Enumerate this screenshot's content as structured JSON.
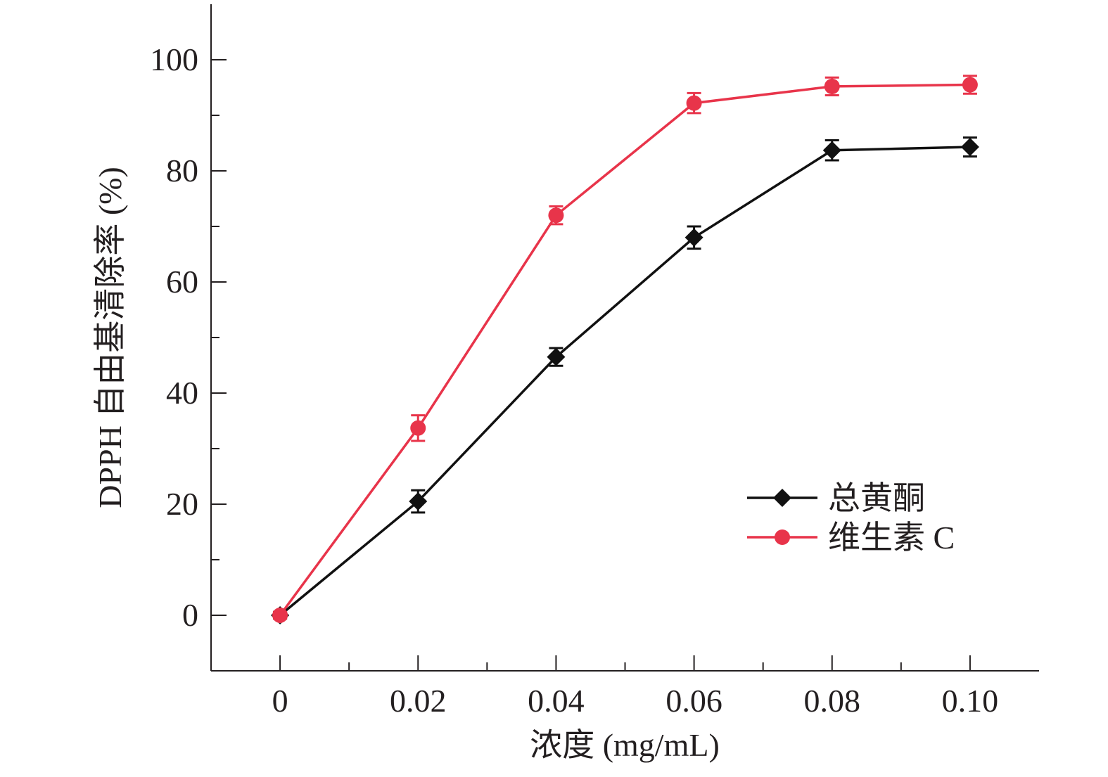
{
  "colors": {
    "axis": "#231f20",
    "series_black": "#111111",
    "series_red": "#e8344a"
  },
  "chart_data": {
    "type": "line",
    "xlabel": "浓度 (mg/mL)",
    "ylabel": "DPPH 自由基清除率 (%)",
    "xlim": [
      -0.01,
      0.11
    ],
    "ylim": [
      -10,
      110
    ],
    "x_ticks": [
      0,
      0.02,
      0.04,
      0.06,
      0.08,
      0.1
    ],
    "x_tick_labels": [
      "0",
      "0.02",
      "0.04",
      "0.06",
      "0.08",
      "0.10"
    ],
    "y_ticks": [
      0,
      20,
      40,
      60,
      80,
      100
    ],
    "y_tick_labels": [
      "0",
      "20",
      "40",
      "60",
      "80",
      "100"
    ],
    "x": [
      0,
      0.02,
      0.04,
      0.06,
      0.08,
      0.1
    ],
    "grid": false,
    "legend_position": "bottom-right",
    "series": [
      {
        "name": "总黄酮",
        "marker": "diamond",
        "color": "#111111",
        "values": [
          0,
          20.5,
          46.5,
          68,
          83.7,
          84.3
        ],
        "errors": [
          0.6,
          2.0,
          1.6,
          2.0,
          1.8,
          1.7
        ]
      },
      {
        "name": "维生素 C",
        "marker": "circle",
        "color": "#e8344a",
        "values": [
          0,
          33.7,
          72,
          92.2,
          95.2,
          95.5
        ],
        "errors": [
          0.6,
          2.3,
          1.6,
          1.8,
          1.6,
          1.6
        ]
      }
    ]
  }
}
